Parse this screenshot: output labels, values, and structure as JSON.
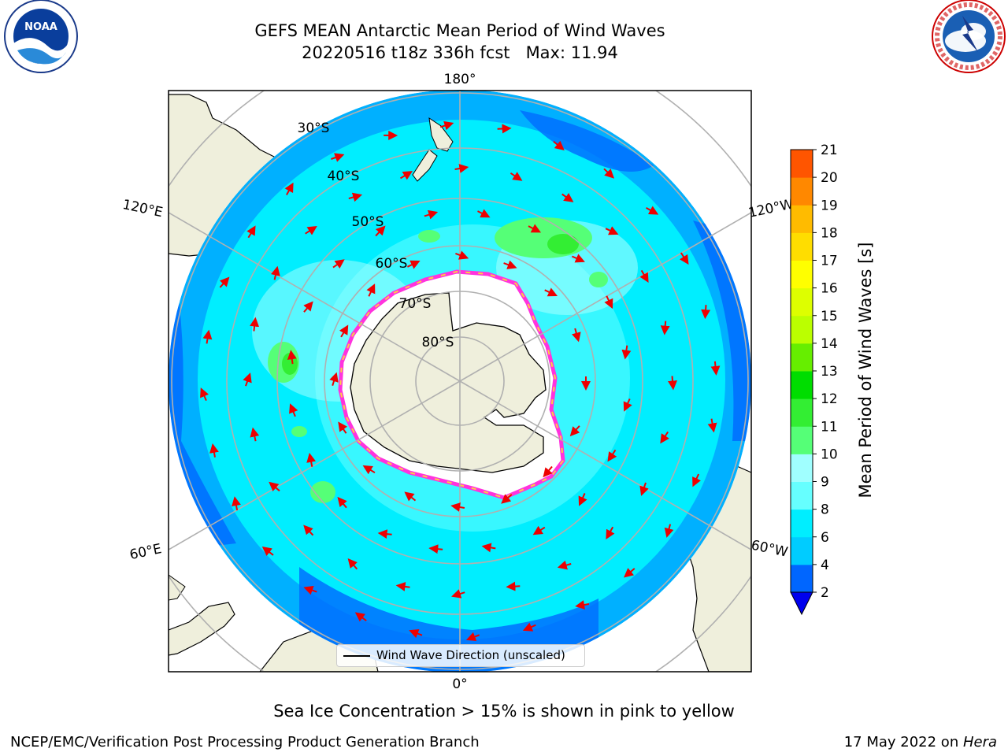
{
  "title_line1": "GEFS MEAN Antarctic Mean Period of Wind Waves",
  "title_line2": "20220516 t18z 336h fcst   Max: 11.94",
  "subtitle": "Sea Ice Concentration > 15% is shown in pink to yellow",
  "footer_left": "NCEP/EMC/Verification Post Processing Product Generation Branch",
  "footer_right_date": "17 May 2022 on ",
  "footer_right_machine": "Hera",
  "legend_label": "Wind Wave Direction (unscaled)",
  "logos": {
    "left": {
      "name": "noaa-logo",
      "text": "NOAA",
      "ring_text": "NATIONAL OCEANIC AND ATMOSPHERIC ADMINISTRATION · U.S. DEPARTMENT OF COMMERCE"
    },
    "right": {
      "name": "nws-logo",
      "ring_text": "NATIONAL WEATHER SERVICE"
    }
  },
  "longitude_labels": {
    "top": "180°",
    "bottom": "0°",
    "upper_left": "120°E",
    "lower_left": "60°E",
    "upper_right": "120°W",
    "lower_right": "60°W"
  },
  "latitude_labels": [
    "30°S",
    "40°S",
    "50°S",
    "60°S",
    "70°S",
    "80°S"
  ],
  "colorbar": {
    "label": "Mean Period of Wind Waves [s]",
    "ticks": [
      "2",
      "4",
      "6",
      "8",
      "9",
      "10",
      "11",
      "12",
      "13",
      "14",
      "15",
      "16",
      "17",
      "18",
      "19",
      "20",
      "21"
    ],
    "colors": [
      "#0066ff",
      "#00ccff",
      "#00eeff",
      "#66ffff",
      "#a0ffff",
      "#55ff77",
      "#33ee33",
      "#00dd00",
      "#66ee00",
      "#bbff00",
      "#ddff00",
      "#ffff00",
      "#ffdd00",
      "#ffbb00",
      "#ff8800",
      "#ff5500",
      "#ff2200",
      "#ff0000"
    ],
    "extend_color": "#0000ee"
  },
  "colors": {
    "ocean_base": "#00f0ff",
    "ocean_mid": "#00b0ff",
    "ocean_deep": "#0070ff",
    "land": "#efefdc",
    "ice_edge": "#ff33dd",
    "ice_inner": "#ffcc44",
    "arrow": "#ee0000",
    "grid": "#b0b0b0"
  }
}
